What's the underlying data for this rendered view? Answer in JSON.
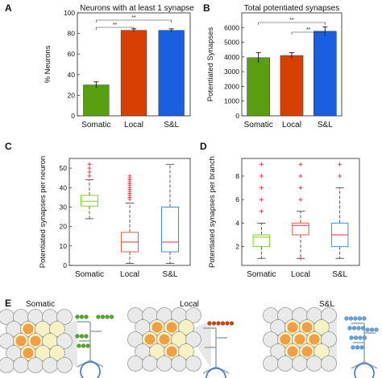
{
  "panels": {
    "A": "A",
    "B": "B",
    "C": "C",
    "D": "D",
    "E": "E"
  },
  "colors": {
    "somatic": "#5a9e12",
    "local": "#d64000",
    "sl": "#1a5fe0",
    "somatic_box": "#7ed321",
    "local_box": "#e25a4a",
    "sl_box": "#3d8ee8",
    "outlier": "#e0323c",
    "median": "#e0323c"
  },
  "chart_data": [
    {
      "type": "bar",
      "title": "Neurons with at least 1 synapse",
      "ylabel": "% Neurons",
      "xlabel": "",
      "categories": [
        "Somatic",
        "Local",
        "S&L"
      ],
      "values": [
        30,
        83,
        83
      ],
      "errors": [
        3,
        1.5,
        1.5
      ],
      "ylim": [
        0,
        100
      ],
      "yticks": [
        "0",
        "20",
        "40",
        "60",
        "80",
        "100"
      ],
      "significance": [
        "**",
        "**"
      ]
    },
    {
      "type": "bar",
      "title": "Total potentiated synapses",
      "ylabel": "Potentiated Synapses",
      "xlabel": "",
      "categories": [
        "Somatic",
        "Local",
        "S&L"
      ],
      "values": [
        3950,
        4100,
        5750
      ],
      "errors": [
        350,
        200,
        300
      ],
      "ylim": [
        0,
        7000
      ],
      "yticks": [
        "0",
        "1000",
        "2000",
        "3000",
        "4000",
        "5000",
        "6000"
      ],
      "significance": [
        "**",
        "**"
      ]
    },
    {
      "type": "box",
      "title": "",
      "ylabel": "Potentiated synapses per neuron",
      "xlabel": "",
      "categories": [
        "Somatic",
        "Local",
        "S&L"
      ],
      "boxes": [
        {
          "whisker_low": 24,
          "q1": 30.5,
          "median": 33,
          "q3": 36,
          "whisker_high": 44,
          "outliers": [
            46,
            48,
            50,
            52
          ]
        },
        {
          "whisker_low": 1,
          "q1": 7,
          "median": 12,
          "q3": 17,
          "whisker_high": 32,
          "outliers": [
            34,
            35,
            36,
            37,
            38,
            39,
            40,
            41,
            42,
            43,
            44,
            45,
            46
          ]
        },
        {
          "whisker_low": 1,
          "q1": 7,
          "median": 12,
          "q3": 30,
          "whisker_high": 52,
          "outliers": []
        }
      ],
      "ylim": [
        0,
        55
      ],
      "yticks": [
        "0",
        "10",
        "20",
        "30",
        "40",
        "50"
      ]
    },
    {
      "type": "box",
      "title": "",
      "ylabel": "Potentiated synapses per branch",
      "xlabel": "",
      "categories": [
        "Somatic",
        "Local",
        "S&L"
      ],
      "boxes": [
        {
          "whisker_low": 1,
          "q1": 2,
          "median": 2.8,
          "q3": 3,
          "whisker_high": 4,
          "outliers": [
            5,
            6,
            7,
            8,
            9
          ]
        },
        {
          "whisker_low": 1,
          "q1": 3,
          "median": 3.8,
          "q3": 4,
          "whisker_high": 5,
          "outliers": [
            1,
            6,
            7,
            8,
            9
          ]
        },
        {
          "whisker_low": 1,
          "q1": 2,
          "median": 3,
          "q3": 4,
          "whisker_high": 7,
          "outliers": [
            8,
            9
          ]
        }
      ],
      "ylim": [
        0.4,
        9.5
      ],
      "yticks": [
        "2",
        "4",
        "6",
        "8"
      ]
    }
  ],
  "illustration": {
    "labels": [
      "Somatic",
      "Local",
      "S&L"
    ],
    "synapse_colors": [
      "#4caf1a",
      "#d64000",
      "#5aa8e8"
    ],
    "active_cell_color": "#f0a042",
    "cell_color": "#f5f0c0",
    "cell_edge": "#9a9a9a",
    "dendrite_color": "#9aa8b6",
    "soma_edge": "#3a74c8"
  }
}
